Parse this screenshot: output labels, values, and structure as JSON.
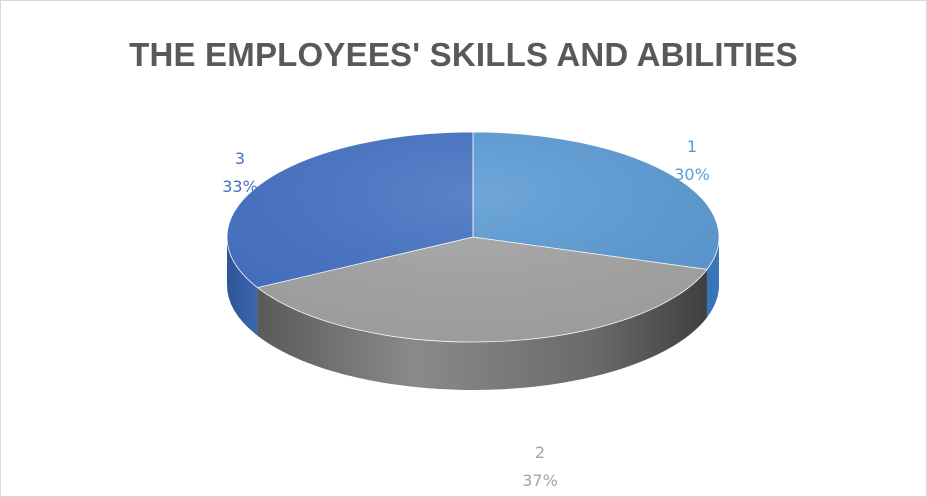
{
  "chart_data": {
    "type": "pie",
    "title": "THE EMPLOYEES'  SKILLS AND ABILITIES",
    "categories": [
      "1",
      "2",
      "3"
    ],
    "values": [
      30,
      37,
      33
    ],
    "labels": [
      "30%",
      "37%",
      "33%"
    ],
    "style": "3d",
    "legend": "none",
    "colors": {
      "1": "#5b9bd5",
      "2": "#a5a5a5",
      "3": "#4472c4"
    }
  }
}
